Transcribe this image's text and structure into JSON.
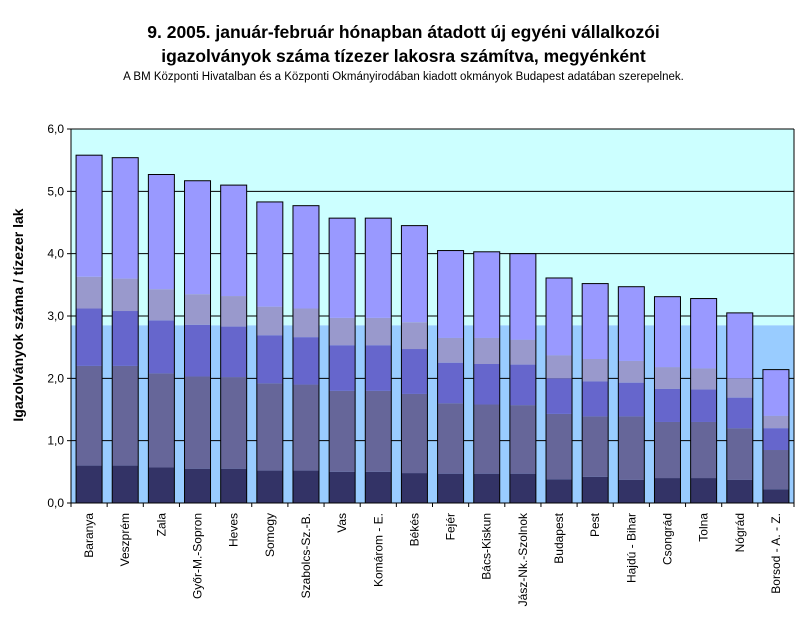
{
  "chart_data": {
    "type": "bar",
    "title_lines": [
      "9.   2005. január-február hónapban átadott új egyéni vállalkozói",
      "igazolványok száma tízezer lakosra számítva, megyénként"
    ],
    "subtitle": "A BM Központi Hivatalban és a Központi Okmányirodában kiadott okmányok Budapest adatában szerepelnek.",
    "ylabel": "Igazolványok száma / tízezer lak",
    "xlabel": "",
    "ylim": [
      0,
      6
    ],
    "yticks": [
      "0,0",
      "1,0",
      "2,0",
      "3,0",
      "4,0",
      "5,0",
      "6,0"
    ],
    "grid": true,
    "legend": "none",
    "background_split_value": 2.85,
    "background_colors": {
      "upper": "#ccffff",
      "lower": "#99ccff"
    },
    "segment_colors": [
      "#333366",
      "#666699",
      "#6666cc",
      "#9999cc",
      "#9999ff"
    ],
    "categories": [
      "Baranya",
      "Veszprém",
      "Zala",
      "Győr-M.-Sopron",
      "Heves",
      "Somogy",
      "Szabolcs-Sz.-B.",
      "Vas",
      "Komárom - E.",
      "Békés",
      "Fejér",
      "Bács-Kiskun",
      "Jász-Nk.-Szolnok",
      "Budapest",
      "Pest",
      "Hajdú - Bihar",
      "Csongrád",
      "Tolna",
      "Nógrád",
      "Borsod - A. - Z."
    ],
    "stack_tops": [
      [
        0.6,
        2.2,
        3.12,
        3.63,
        5.58
      ],
      [
        0.6,
        2.2,
        3.08,
        3.6,
        5.54
      ],
      [
        0.57,
        2.08,
        2.93,
        3.43,
        5.27
      ],
      [
        0.55,
        2.03,
        2.86,
        3.35,
        5.17
      ],
      [
        0.55,
        2.02,
        2.83,
        3.32,
        5.1
      ],
      [
        0.52,
        1.92,
        2.69,
        3.15,
        4.83
      ],
      [
        0.52,
        1.9,
        2.66,
        3.12,
        4.77
      ],
      [
        0.5,
        1.8,
        2.53,
        2.97,
        4.57
      ],
      [
        0.5,
        1.8,
        2.53,
        2.97,
        4.57
      ],
      [
        0.48,
        1.75,
        2.47,
        2.9,
        4.45
      ],
      [
        0.47,
        1.6,
        2.25,
        2.65,
        4.05
      ],
      [
        0.47,
        1.58,
        2.23,
        2.65,
        4.03
      ],
      [
        0.47,
        1.57,
        2.22,
        2.62,
        4.0
      ],
      [
        0.38,
        1.43,
        2.0,
        2.37,
        3.61
      ],
      [
        0.42,
        1.39,
        1.95,
        2.31,
        3.52
      ],
      [
        0.37,
        1.39,
        1.93,
        2.28,
        3.47
      ],
      [
        0.4,
        1.3,
        1.83,
        2.18,
        3.31
      ],
      [
        0.4,
        1.3,
        1.82,
        2.16,
        3.28
      ],
      [
        0.37,
        1.2,
        1.69,
        2.0,
        3.05
      ],
      [
        0.22,
        0.85,
        1.2,
        1.4,
        2.14
      ]
    ]
  }
}
